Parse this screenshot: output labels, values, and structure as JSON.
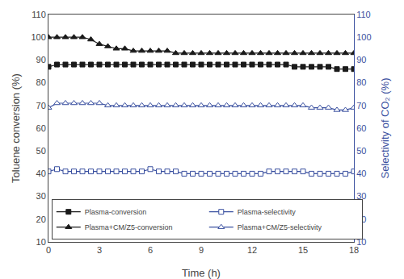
{
  "chart_data": {
    "type": "line",
    "x_label": "Time (h)",
    "y_label": "Toluene conversion (%)",
    "y2_label": "Selectivity of CO₂ (%)",
    "xlim": [
      0,
      18
    ],
    "xticks": [
      0,
      3,
      6,
      9,
      12,
      15,
      18
    ],
    "ylim": [
      10,
      110
    ],
    "yticks": [
      10,
      20,
      30,
      40,
      50,
      60,
      70,
      80,
      90,
      100,
      110
    ],
    "y2lim": [
      10,
      110
    ],
    "y2ticks": [
      10,
      20,
      30,
      40,
      50,
      60,
      70,
      80,
      90,
      100,
      110
    ],
    "grid": false,
    "legend": "lower left",
    "series": [
      {
        "name": "Plasma-conversion",
        "color": "#1a1a1a",
        "marker": "square",
        "x": [
          0,
          0.5,
          1,
          1.5,
          2,
          2.5,
          3,
          3.5,
          4,
          4.5,
          5,
          5.5,
          6,
          6.5,
          7,
          7.5,
          8,
          8.5,
          9,
          9.5,
          10,
          10.5,
          11,
          11.5,
          12,
          12.5,
          13,
          13.5,
          14,
          14.5,
          15,
          15.5,
          16,
          16.5,
          17,
          17.5,
          18
        ],
        "values": [
          87,
          88,
          88,
          88,
          88,
          88,
          88,
          88,
          88,
          88,
          88,
          88,
          88,
          88,
          88,
          88,
          88,
          88,
          88,
          88,
          88,
          88,
          88,
          88,
          88,
          88,
          88,
          88,
          88,
          87,
          87,
          87,
          87,
          87,
          86,
          86,
          86
        ]
      },
      {
        "name": "Plasma-selectivity",
        "color": "#3a50a0",
        "marker": "square",
        "axis": "y2",
        "x": [
          0,
          0.5,
          1,
          1.5,
          2,
          2.5,
          3,
          3.5,
          4,
          4.5,
          5,
          5.5,
          6,
          6.5,
          7,
          7.5,
          8,
          8.5,
          9,
          9.5,
          10,
          10.5,
          11,
          11.5,
          12,
          12.5,
          13,
          13.5,
          14,
          14.5,
          15,
          15.5,
          16,
          16.5,
          17,
          17.5,
          18
        ],
        "values": [
          41,
          42,
          41,
          41,
          41,
          41,
          41,
          41,
          41,
          41,
          41,
          41,
          42,
          41,
          41,
          41,
          40,
          40,
          40,
          40,
          40,
          40,
          40,
          40,
          40,
          40,
          41,
          41,
          41,
          41,
          41,
          40,
          40,
          40,
          40,
          40,
          41
        ]
      },
      {
        "name": "Plasma+CM/Z5-conversion",
        "color": "#1a1a1a",
        "marker": "triangle",
        "x": [
          0,
          0.5,
          1,
          1.5,
          2,
          2.5,
          3,
          3.5,
          4,
          4.5,
          5,
          5.5,
          6,
          6.5,
          7,
          7.5,
          8,
          8.5,
          9,
          9.5,
          10,
          10.5,
          11,
          11.5,
          12,
          12.5,
          13,
          13.5,
          14,
          14.5,
          15,
          15.5,
          16,
          16.5,
          17,
          17.5,
          18
        ],
        "values": [
          100,
          100,
          100,
          100,
          100,
          99,
          97,
          96,
          95,
          95,
          94,
          94,
          94,
          94,
          94,
          93,
          93,
          93,
          93,
          93,
          93,
          93,
          93,
          93,
          93,
          93,
          93,
          93,
          93,
          93,
          93,
          93,
          93,
          93,
          93,
          93,
          93
        ]
      },
      {
        "name": "Plasma+CM/Z5-selectivity",
        "color": "#3a50a0",
        "marker": "triangle",
        "axis": "y2",
        "x": [
          0,
          0.5,
          1,
          1.5,
          2,
          2.5,
          3,
          3.5,
          4,
          4.5,
          5,
          5.5,
          6,
          6.5,
          7,
          7.5,
          8,
          8.5,
          9,
          9.5,
          10,
          10.5,
          11,
          11.5,
          12,
          12.5,
          13,
          13.5,
          14,
          14.5,
          15,
          15.5,
          16,
          16.5,
          17,
          17.5,
          18
        ],
        "values": [
          69,
          71,
          71,
          71,
          71,
          71,
          71,
          70,
          70,
          70,
          70,
          70,
          70,
          70,
          70,
          70,
          70,
          70,
          70,
          70,
          70,
          70,
          70,
          70,
          70,
          70,
          70,
          70,
          70,
          70,
          70,
          69,
          69,
          69,
          68,
          68,
          69
        ]
      }
    ]
  }
}
